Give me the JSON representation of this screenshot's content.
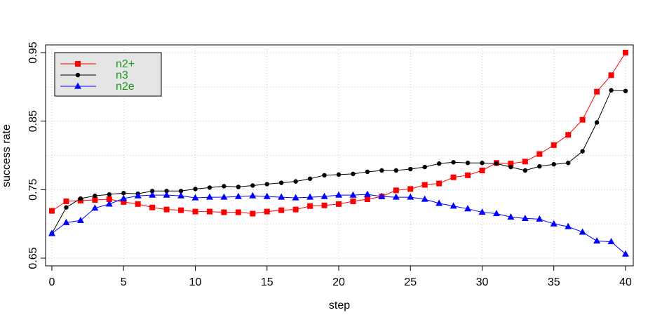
{
  "chart_data": {
    "type": "line",
    "xlabel": "step",
    "ylabel": "success rate",
    "xlim": [
      0,
      40
    ],
    "ylim": [
      0.65,
      0.95
    ],
    "x_ticks": [
      0,
      5,
      10,
      15,
      20,
      25,
      30,
      35,
      40
    ],
    "y_ticks": [
      0.65,
      0.75,
      0.85,
      0.95
    ],
    "y_tick_labels": [
      "0.65",
      "0.75",
      "0.85",
      "0.95"
    ],
    "grid": true,
    "legend": {
      "position": "top-left",
      "background": "#e5e5e5",
      "text_color": "#1a9a1a"
    },
    "x": [
      0,
      1,
      2,
      3,
      4,
      5,
      6,
      7,
      8,
      9,
      10,
      11,
      12,
      13,
      14,
      15,
      16,
      17,
      18,
      19,
      20,
      21,
      22,
      23,
      24,
      25,
      26,
      27,
      28,
      29,
      30,
      31,
      32,
      33,
      34,
      35,
      36,
      37,
      38,
      39,
      40
    ],
    "series": [
      {
        "name": "n2+",
        "color": "#ff0000",
        "marker": "square",
        "values": [
          0.719,
          0.733,
          0.734,
          0.735,
          0.736,
          0.732,
          0.729,
          0.724,
          0.721,
          0.72,
          0.718,
          0.718,
          0.717,
          0.717,
          0.715,
          0.718,
          0.72,
          0.721,
          0.726,
          0.727,
          0.729,
          0.733,
          0.736,
          0.74,
          0.749,
          0.751,
          0.757,
          0.759,
          0.768,
          0.771,
          0.778,
          0.789,
          0.788,
          0.791,
          0.802,
          0.815,
          0.83,
          0.852,
          0.893,
          0.917,
          0.95
        ]
      },
      {
        "name": "n3",
        "color": "#000000",
        "marker": "circle",
        "values": [
          0.686,
          0.724,
          0.737,
          0.741,
          0.743,
          0.745,
          0.744,
          0.748,
          0.748,
          0.748,
          0.751,
          0.753,
          0.755,
          0.754,
          0.756,
          0.758,
          0.76,
          0.762,
          0.766,
          0.771,
          0.772,
          0.773,
          0.776,
          0.778,
          0.778,
          0.78,
          0.783,
          0.788,
          0.79,
          0.789,
          0.789,
          0.788,
          0.783,
          0.778,
          0.784,
          0.787,
          0.789,
          0.806,
          0.848,
          0.895,
          0.894
        ]
      },
      {
        "name": "n2e",
        "color": "#0000ff",
        "marker": "triangle",
        "values": [
          0.686,
          0.702,
          0.705,
          0.723,
          0.729,
          0.737,
          0.741,
          0.742,
          0.742,
          0.741,
          0.738,
          0.739,
          0.739,
          0.74,
          0.741,
          0.74,
          0.739,
          0.738,
          0.739,
          0.74,
          0.742,
          0.742,
          0.743,
          0.74,
          0.739,
          0.739,
          0.736,
          0.73,
          0.726,
          0.722,
          0.717,
          0.715,
          0.71,
          0.708,
          0.707,
          0.7,
          0.696,
          0.688,
          0.675,
          0.674,
          0.656
        ]
      }
    ]
  }
}
